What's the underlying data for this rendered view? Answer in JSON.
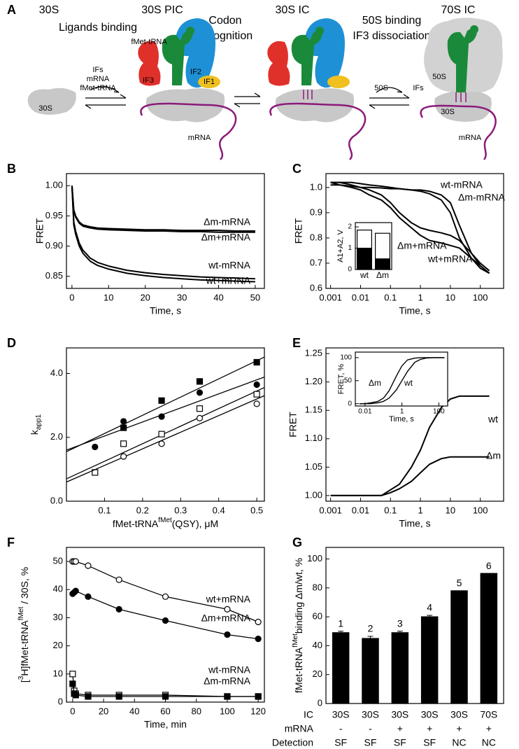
{
  "diagram": {
    "panel": "A",
    "labels": [
      "30S",
      "30S PIC",
      "30S IC",
      "70S IC",
      "Ligands binding",
      "Codon",
      "recognition",
      "50S binding",
      "IF3 dissociation",
      "IFs",
      "mRNA",
      "fMet-tRNA",
      "fMet-tRNA",
      "IF3",
      "IF2",
      "IF1",
      "30S",
      "mRNA",
      "50S",
      "IFs",
      "50S",
      "30S",
      "mRNA"
    ]
  },
  "chart_data": [
    {
      "panel": "B",
      "type": "line",
      "xlabel": "Time, s",
      "ylabel": "FRET",
      "x": [
        0,
        0.5,
        1,
        2,
        3,
        5,
        7,
        10,
        15,
        20,
        25,
        30,
        35,
        40,
        45,
        50
      ],
      "xlim": [
        -1.5,
        52.5
      ],
      "ylim": [
        0.83,
        1.02
      ],
      "xticks": [
        0,
        10,
        20,
        30,
        40,
        50
      ],
      "yticks": [
        0.85,
        {
          "value": 0.9,
          "label": "0.90"
        },
        0.95,
        {
          "value": 1,
          "label": "1.00"
        }
      ],
      "series": [
        {
          "name": "Δm-mRNA",
          "color": "#000",
          "values": [
            1.0,
            0.96,
            0.95,
            0.94,
            0.935,
            0.932,
            0.93,
            0.929,
            0.928,
            0.927,
            0.927,
            0.926,
            0.926,
            0.926,
            0.925,
            0.925
          ]
        },
        {
          "name": "Δm+mRNA",
          "color": "#000",
          "values": [
            1.0,
            0.958,
            0.948,
            0.938,
            0.933,
            0.93,
            0.928,
            0.927,
            0.926,
            0.925,
            0.925,
            0.924,
            0.924,
            0.923,
            0.923,
            0.923
          ]
        },
        {
          "name": "wt-mRNA",
          "color": "#000",
          "values": [
            1.0,
            0.94,
            0.925,
            0.905,
            0.893,
            0.88,
            0.873,
            0.867,
            0.86,
            0.856,
            0.853,
            0.851,
            0.849,
            0.848,
            0.847,
            0.846
          ]
        },
        {
          "name": "wt+mRNA",
          "color": "#000",
          "values": [
            1.0,
            0.935,
            0.92,
            0.9,
            0.888,
            0.875,
            0.868,
            0.862,
            0.855,
            0.851,
            0.848,
            0.846,
            0.844,
            0.843,
            0.842,
            0.841
          ]
        }
      ]
    },
    {
      "panel": "C",
      "type": "line",
      "xscale": "log",
      "xlabel": "Time, s",
      "ylabel": "FRET",
      "x": [
        0.001,
        0.002,
        0.005,
        0.01,
        0.02,
        0.05,
        0.1,
        0.2,
        0.5,
        1,
        2,
        5,
        10,
        20,
        50,
        100,
        200
      ],
      "xlim": [
        0.0007,
        600
      ],
      "ylim": [
        0.6,
        1.055
      ],
      "xticks": [
        0.001,
        0.01,
        0.1,
        1,
        10,
        100
      ],
      "yticks": [
        0.6,
        0.7,
        0.8,
        0.9,
        {
          "value": 1,
          "label": "1.0"
        }
      ],
      "series": [
        {
          "name": "wt-mRNA",
          "color": "#000",
          "values": [
            1.01,
            1.01,
            1.005,
            1.0,
            1.0,
            0.998,
            0.995,
            0.995,
            0.99,
            0.985,
            0.975,
            0.95,
            0.9,
            0.8,
            0.72,
            0.68,
            0.66
          ]
        },
        {
          "name": "Δm-mRNA",
          "color": "#000",
          "values": [
            1.02,
            1.02,
            1.02,
            1.015,
            1.01,
            1.005,
            1.0,
            0.995,
            0.99,
            0.99,
            0.985,
            0.97,
            0.94,
            0.85,
            0.74,
            0.69,
            0.66
          ]
        },
        {
          "name": "Δm+mRNA",
          "color": "#000",
          "values": [
            1.02,
            1.02,
            1.01,
            1.0,
            0.99,
            0.97,
            0.94,
            0.9,
            0.86,
            0.84,
            0.83,
            0.82,
            0.81,
            0.79,
            0.74,
            0.7,
            0.67
          ]
        },
        {
          "name": "wt+mRNA",
          "color": "#000",
          "values": [
            1.02,
            1.01,
            1.0,
            0.99,
            0.97,
            0.95,
            0.92,
            0.88,
            0.84,
            0.81,
            0.79,
            0.78,
            0.77,
            0.76,
            0.72,
            0.69,
            0.66
          ]
        }
      ],
      "inset": {
        "type": "bar",
        "stacked": true,
        "ylabel": "A1+A2, V",
        "categories": [
          "wt",
          "Δm"
        ],
        "ylim": [
          0,
          2.2
        ],
        "yticks": [
          0,
          1,
          2
        ],
        "series": [
          {
            "color": "#000",
            "values": [
              1.0,
              0.5
            ]
          },
          {
            "color": "#fff",
            "values": [
              0.85,
              1.2
            ]
          }
        ]
      }
    },
    {
      "panel": "D",
      "type": "scatter",
      "xlabel": [
        {
          "text": "fMet-tRNA"
        },
        {
          "text": "fMet",
          "shift": "sup"
        },
        {
          "text": "(QSY), μM"
        }
      ],
      "ylabel": [
        {
          "text": "k"
        },
        {
          "text": "app1",
          "shift": "sub"
        }
      ],
      "xlim": [
        0,
        0.52
      ],
      "ylim": [
        0,
        4.8
      ],
      "xticks": [
        0.1,
        0.2,
        0.3,
        0.4,
        0.5
      ],
      "yticks": [
        {
          "value": 0,
          "label": "0.0"
        },
        {
          "value": 2,
          "label": "2.0"
        },
        {
          "value": 4,
          "label": "4.0"
        }
      ],
      "series": [
        {
          "marker": "square",
          "color": "#000",
          "fill": "#000",
          "x": [
            0.15,
            0.25,
            0.35,
            0.5
          ],
          "values": [
            2.3,
            3.15,
            3.75,
            4.35
          ],
          "intercept": 1.55,
          "slope": 5.7
        },
        {
          "marker": "circle",
          "color": "#000",
          "fill": "#000",
          "x": [
            0.075,
            0.15,
            0.25,
            0.35,
            0.5
          ],
          "values": [
            1.7,
            2.5,
            2.65,
            3.4,
            3.65
          ],
          "intercept": 1.6,
          "slope": 4.4
        },
        {
          "marker": "square",
          "color": "#000",
          "fill": "#fff",
          "x": [
            0.075,
            0.15,
            0.25,
            0.35,
            0.5
          ],
          "values": [
            0.9,
            1.8,
            2.1,
            2.9,
            3.35
          ],
          "intercept": 0.7,
          "slope": 5.5
        },
        {
          "marker": "circle",
          "color": "#000",
          "fill": "#fff",
          "x": [
            0.15,
            0.25,
            0.35,
            0.5
          ],
          "values": [
            1.4,
            1.8,
            2.6,
            3.05
          ],
          "intercept": 0.6,
          "slope": 5.2
        }
      ]
    },
    {
      "panel": "E",
      "type": "line",
      "xscale": "log",
      "xlabel": "Time, s",
      "ylabel": "FRET",
      "x": [
        0.001,
        0.002,
        0.005,
        0.01,
        0.02,
        0.05,
        0.1,
        0.2,
        0.5,
        1,
        2,
        5,
        10,
        20,
        50,
        100,
        200
      ],
      "xlim": [
        0.0007,
        600
      ],
      "ylim": [
        0.99,
        1.26
      ],
      "xticks": [
        0.001,
        0.01,
        0.1,
        1,
        10,
        100
      ],
      "yticks": [
        {
          "value": 1,
          "label": "1.00"
        },
        1.05,
        {
          "value": 1.1,
          "label": "1.10"
        },
        1.15,
        {
          "value": 1.2,
          "label": "1.20"
        },
        1.25
      ],
      "series": [
        {
          "name": "wt",
          "color": "#000",
          "values": [
            1.0,
            1.0,
            1.0,
            1.0,
            1.0,
            1.0,
            1.01,
            1.02,
            1.05,
            1.08,
            1.12,
            1.155,
            1.17,
            1.175,
            1.175,
            1.175,
            1.175
          ]
        },
        {
          "name": "Δm",
          "color": "#000",
          "values": [
            1.0,
            1.0,
            1.0,
            1.0,
            1.0,
            1.0,
            1.005,
            1.012,
            1.025,
            1.04,
            1.055,
            1.065,
            1.068,
            1.068,
            1.068,
            1.068,
            1.068
          ]
        }
      ],
      "inset": {
        "type": "line",
        "xscale": "log",
        "xlabel": "Time, s",
        "ylabel": "FRET, %",
        "x": [
          0.005,
          0.01,
          0.02,
          0.05,
          0.1,
          0.2,
          0.5,
          1,
          2,
          5,
          10,
          20,
          50,
          100,
          200
        ],
        "xlim": [
          0.003,
          300
        ],
        "ylim": [
          -5,
          112
        ],
        "xticks": [
          0.01,
          1,
          100
        ],
        "yticks": [
          0,
          50,
          100
        ],
        "series": [
          {
            "name": "Δm",
            "color": "#000",
            "values": [
              0,
              0,
              2,
              5,
              12,
              28,
              60,
              82,
              95,
              99,
              100,
              100,
              100,
              100,
              100
            ]
          },
          {
            "name": "wt",
            "color": "#000",
            "values": [
              0,
              0,
              0,
              2,
              5,
              12,
              30,
              50,
              70,
              90,
              96,
              99,
              100,
              100,
              100
            ]
          }
        ]
      }
    },
    {
      "panel": "F",
      "type": "scatter",
      "connect": true,
      "xlabel": "Time, min",
      "ylabel": [
        {
          "text": "["
        },
        {
          "text": "3",
          "shift": "sup"
        },
        {
          "text": "H]fMet-tRNA"
        },
        {
          "text": "fMet",
          "shift": "sup"
        },
        {
          "text": " / 30S, %"
        }
      ],
      "xlim": [
        -4,
        124
      ],
      "ylim": [
        0,
        55
      ],
      "xticks": [
        0,
        20,
        40,
        60,
        80,
        100,
        120
      ],
      "yticks": [
        0,
        10,
        20,
        30,
        40,
        50
      ],
      "series": [
        {
          "name": "wt+mRNA",
          "marker": "circle",
          "color": "#000",
          "fill": "#fff",
          "x": [
            0,
            1,
            2,
            10,
            30,
            60,
            100,
            120
          ],
          "values": [
            50,
            50,
            50,
            48.5,
            43.5,
            37.5,
            33,
            28.5
          ]
        },
        {
          "name": "Δm+mRNA",
          "marker": "circle",
          "color": "#000",
          "fill": "#000",
          "x": [
            0,
            1,
            2,
            10,
            30,
            60,
            100,
            120
          ],
          "values": [
            38.5,
            39,
            39.5,
            37.5,
            33,
            29,
            24,
            22.5
          ]
        },
        {
          "name": "wt-mRNA",
          "marker": "square",
          "color": "#000",
          "fill": "#fff",
          "x": [
            0,
            1,
            2,
            10,
            30,
            60,
            100,
            120
          ],
          "values": [
            10,
            4,
            3,
            2.5,
            2.5,
            2.5,
            2,
            2
          ]
        },
        {
          "name": "Δm-mRNA",
          "marker": "square",
          "color": "#000",
          "fill": "#000",
          "x": [
            0,
            1,
            2,
            10,
            30,
            60,
            100,
            120
          ],
          "values": [
            6.5,
            3,
            2.5,
            2,
            2,
            2,
            2,
            2
          ]
        }
      ]
    },
    {
      "panel": "G",
      "type": "bar",
      "category_position": "above",
      "color": "#000",
      "ylabel": [
        {
          "text": "fMet-tRNA"
        },
        {
          "text": "fMet",
          "shift": "sup"
        },
        {
          "text": "binding Δm/wt, %"
        }
      ],
      "categories": [
        "1",
        "2",
        "3",
        "4",
        "5",
        "6"
      ],
      "values": [
        49,
        45,
        49,
        60,
        78,
        90
      ],
      "errors": [
        1,
        1.5,
        1,
        1,
        null,
        null
      ],
      "ylim": [
        0,
        108
      ],
      "yticks": [
        0,
        20,
        40,
        60,
        80,
        100
      ],
      "table": [
        {
          "label": "IC",
          "values": [
            "30S",
            "30S",
            "30S",
            "30S",
            "30S",
            "70S"
          ]
        },
        {
          "label": "mRNA",
          "values": [
            "-",
            "-",
            "+",
            "+",
            "+",
            "+"
          ]
        },
        {
          "label": "Detection",
          "values": [
            "SF",
            "SF",
            "SF",
            "SF",
            "NC",
            "NC"
          ]
        }
      ]
    }
  ]
}
